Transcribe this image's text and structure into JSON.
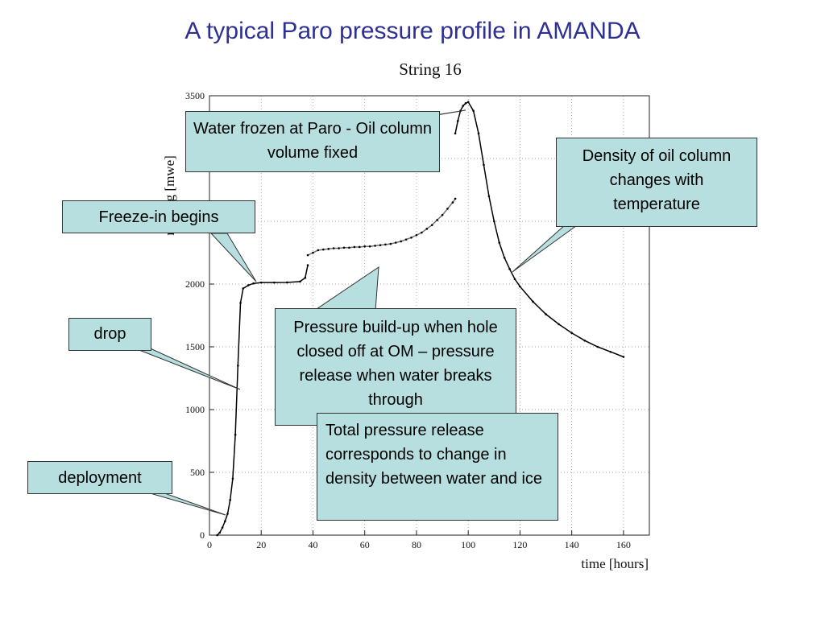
{
  "slide": {
    "title": "A typical Paro pressure profile in AMANDA"
  },
  "annotations": {
    "water_frozen": "Water frozen at Paro - Oil column volume fixed",
    "freeze_in": "Freeze-in begins",
    "density": "Density of oil column changes with temperature",
    "drop": "drop",
    "deployment": "deployment",
    "buildup": "Pressure build-up when hole closed off at OM – pressure release when water breaks through",
    "total_release": "Total pressure release corresponds to change in density between water and ice"
  },
  "colors": {
    "title": "#2e3192",
    "callout_fill": "#b7dfe0",
    "curve": "#000000"
  },
  "chart_data": {
    "type": "scatter",
    "title": "String 16",
    "xlabel": "time [hours]",
    "ylabel": "reading [mwe]",
    "xlim": [
      0,
      170
    ],
    "ylim": [
      0,
      3500
    ],
    "xticks": [
      0,
      20,
      40,
      60,
      80,
      100,
      120,
      140,
      160
    ],
    "yticks": [
      0,
      500,
      1000,
      1500,
      2000,
      2500,
      3000,
      3500
    ],
    "grid": true,
    "series": [
      {
        "x": [
          3,
          4,
          5,
          6,
          7,
          8,
          9,
          10,
          11,
          12,
          13,
          15,
          17,
          20,
          25,
          30,
          35,
          37,
          38
        ],
        "y": [
          0,
          20,
          60,
          110,
          170,
          280,
          450,
          800,
          1350,
          1850,
          1965,
          1990,
          2005,
          2012,
          2012,
          2013,
          2020,
          2050,
          2150
        ]
      },
      {
        "x": [
          38,
          40,
          42,
          44,
          46,
          48,
          50,
          52,
          54,
          56,
          58,
          60,
          62,
          64,
          66,
          68,
          70,
          72,
          74,
          76,
          78,
          80,
          82,
          84,
          86,
          88,
          90,
          92,
          94,
          95
        ],
        "y": [
          2230,
          2250,
          2270,
          2275,
          2280,
          2285,
          2285,
          2290,
          2290,
          2295,
          2295,
          2300,
          2300,
          2305,
          2310,
          2315,
          2320,
          2330,
          2340,
          2355,
          2370,
          2390,
          2410,
          2440,
          2470,
          2510,
          2550,
          2600,
          2650,
          2680
        ]
      },
      {
        "x": [
          95,
          96,
          97,
          98,
          99,
          100,
          102,
          104,
          106,
          108,
          110,
          112,
          114,
          116,
          118,
          120,
          125,
          130,
          135,
          140,
          145,
          150,
          155,
          160
        ],
        "y": [
          3200,
          3300,
          3380,
          3420,
          3440,
          3450,
          3380,
          3200,
          2950,
          2700,
          2500,
          2330,
          2210,
          2120,
          2040,
          1980,
          1860,
          1760,
          1680,
          1610,
          1550,
          1500,
          1460,
          1420
        ]
      }
    ]
  }
}
